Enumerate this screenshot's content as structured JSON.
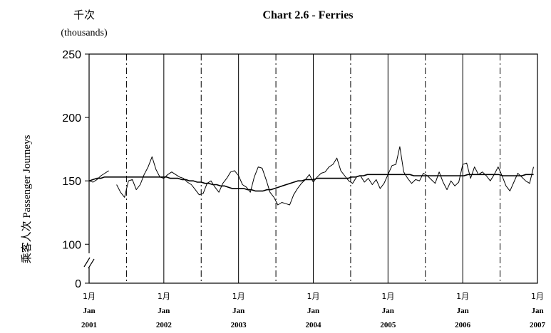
{
  "chart_data": {
    "type": "line",
    "title": "Chart 2.6 -  Ferries",
    "unit_cn": "千次",
    "unit_en": "(thousands)",
    "ylabel": "乘客人次  Passenger Journeys",
    "ylim": [
      0,
      250
    ],
    "yticks": [
      0,
      100,
      150,
      200,
      250
    ],
    "y_axis_break": true,
    "xlim": [
      2001,
      2007
    ],
    "x_ticks": [
      {
        "x": 2001,
        "month": "1月",
        "label": "Jan",
        "year": "2001"
      },
      {
        "x": 2002,
        "month": "1月",
        "label": "Jan",
        "year": "2002"
      },
      {
        "x": 2003,
        "month": "1月",
        "label": "Jan",
        "year": "2003"
      },
      {
        "x": 2004,
        "month": "1月",
        "label": "Jan",
        "year": "2004"
      },
      {
        "x": 2005,
        "month": "1月",
        "label": "Jan",
        "year": "2005"
      },
      {
        "x": 2006,
        "month": "1月",
        "label": "Jan",
        "year": "2006"
      },
      {
        "x": 2007,
        "month": "1月",
        "label": "Jan",
        "year": "2007"
      }
    ],
    "grid": "vertical lines: solid at January, dash-dot at July",
    "series": [
      {
        "style": "thin",
        "values": [
          150,
          149,
          151,
          154,
          156,
          158,
          null,
          147,
          141,
          137,
          150,
          151,
          143,
          147,
          155,
          161,
          169,
          159,
          153,
          152,
          155,
          157,
          155,
          153,
          152,
          149,
          147,
          143,
          139,
          140,
          148,
          150,
          145,
          141,
          148,
          152,
          157,
          158,
          154,
          147,
          145,
          141,
          153,
          161,
          160,
          151,
          141,
          137,
          131,
          133,
          132,
          131,
          139,
          144,
          148,
          151,
          155,
          149,
          153,
          156,
          157,
          161,
          163,
          168,
          158,
          154,
          150,
          148,
          153,
          154,
          149,
          152,
          147,
          151,
          144,
          148,
          155,
          162,
          163,
          177,
          157,
          152,
          148,
          151,
          150,
          156,
          154,
          151,
          148,
          157,
          149,
          143,
          150,
          146,
          149,
          163,
          164,
          152,
          161,
          155,
          157,
          154,
          150,
          155,
          161,
          154,
          146,
          142,
          149,
          156,
          153,
          150,
          148,
          161
        ]
      },
      {
        "style": "smooth",
        "values": [
          150,
          151,
          152,
          152,
          153,
          153,
          153,
          153,
          153,
          153,
          153,
          153,
          153,
          153,
          153,
          153,
          153,
          153,
          153,
          153,
          153,
          152,
          152,
          152,
          151,
          151,
          150,
          150,
          149,
          149,
          148,
          148,
          147,
          147,
          146,
          146,
          145,
          144,
          144,
          144,
          144,
          143,
          143,
          142,
          142,
          142,
          143,
          143,
          144,
          145,
          146,
          147,
          148,
          149,
          150,
          150,
          151,
          151,
          151,
          152,
          152,
          152,
          152,
          152,
          152,
          152,
          152,
          152,
          153,
          153,
          154,
          154,
          155,
          155,
          155,
          155,
          155,
          155,
          155,
          155,
          155,
          155,
          155,
          155,
          154,
          154,
          154,
          154,
          154,
          154,
          154,
          154,
          154,
          154,
          154,
          154,
          154,
          154,
          155,
          155,
          155,
          155,
          155,
          155,
          155,
          155,
          155,
          154,
          154,
          154,
          154,
          154,
          154,
          155,
          155,
          155
        ]
      }
    ]
  }
}
